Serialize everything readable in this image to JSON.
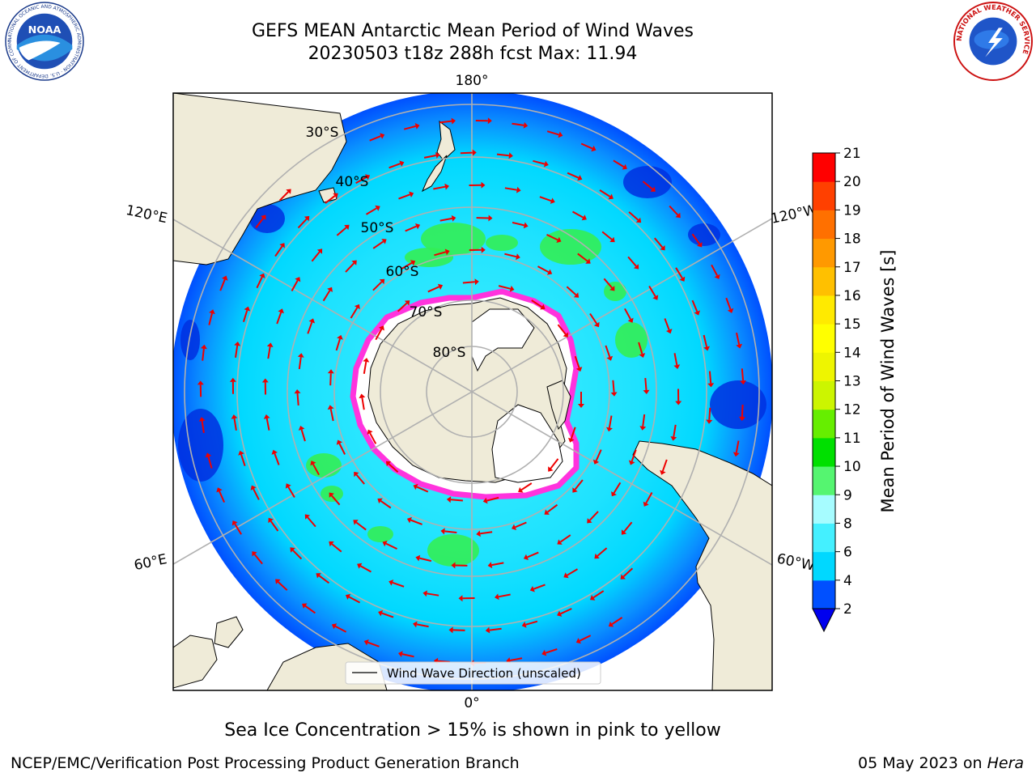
{
  "header": {
    "title_line1": "GEFS MEAN Antarctic Mean Period of Wind Waves",
    "title_line2": "20230503 t18z 288h fcst   Max: 11.94"
  },
  "logos": {
    "noaa_text": "NOAA",
    "noaa_ring": "NATIONAL OCEANIC AND ATMOSPHERIC ADMINISTRATION · U.S. DEPARTMENT OF COMMERCE",
    "nws_ring": "NATIONAL WEATHER SERVICE"
  },
  "map": {
    "lon_labels": {
      "top": "180°",
      "bottom": "0°",
      "upper_left": "120°E",
      "lower_left": "60°E",
      "upper_right": "120°W",
      "lower_right": "60°W"
    },
    "lat_labels": [
      "30°S",
      "40°S",
      "50°S",
      "60°S",
      "70°S",
      "80°S"
    ],
    "legend_label": "Wind Wave Direction (unscaled)",
    "colors": {
      "land": "#efebd8",
      "ice_edge": "#ff33dd",
      "arrow": "#ee0000",
      "grid": "#b0b0b0"
    }
  },
  "colorbar": {
    "label": "Mean Period of Wind Waves [s]",
    "ticks": [
      "2",
      "4",
      "6",
      "8",
      "9",
      "10",
      "11",
      "12",
      "13",
      "14",
      "15",
      "16",
      "17",
      "18",
      "19",
      "20",
      "21"
    ],
    "colors": [
      "#0050ff",
      "#00d8ff",
      "#44f0ff",
      "#a6fcff",
      "#55f570",
      "#00e000",
      "#66ee00",
      "#ccf500",
      "#eef500",
      "#ffff00",
      "#ffea00",
      "#ffc000",
      "#ff9900",
      "#ff7000",
      "#ff4000",
      "#ff0000"
    ],
    "under_color": "#0000ee"
  },
  "caption": "Sea Ice Concentration > 15% is shown in pink to yellow",
  "footer": {
    "left": "NCEP/EMC/Verification Post Processing Product Generation Branch",
    "date": "05 May 2023 on ",
    "host": "Hera"
  }
}
